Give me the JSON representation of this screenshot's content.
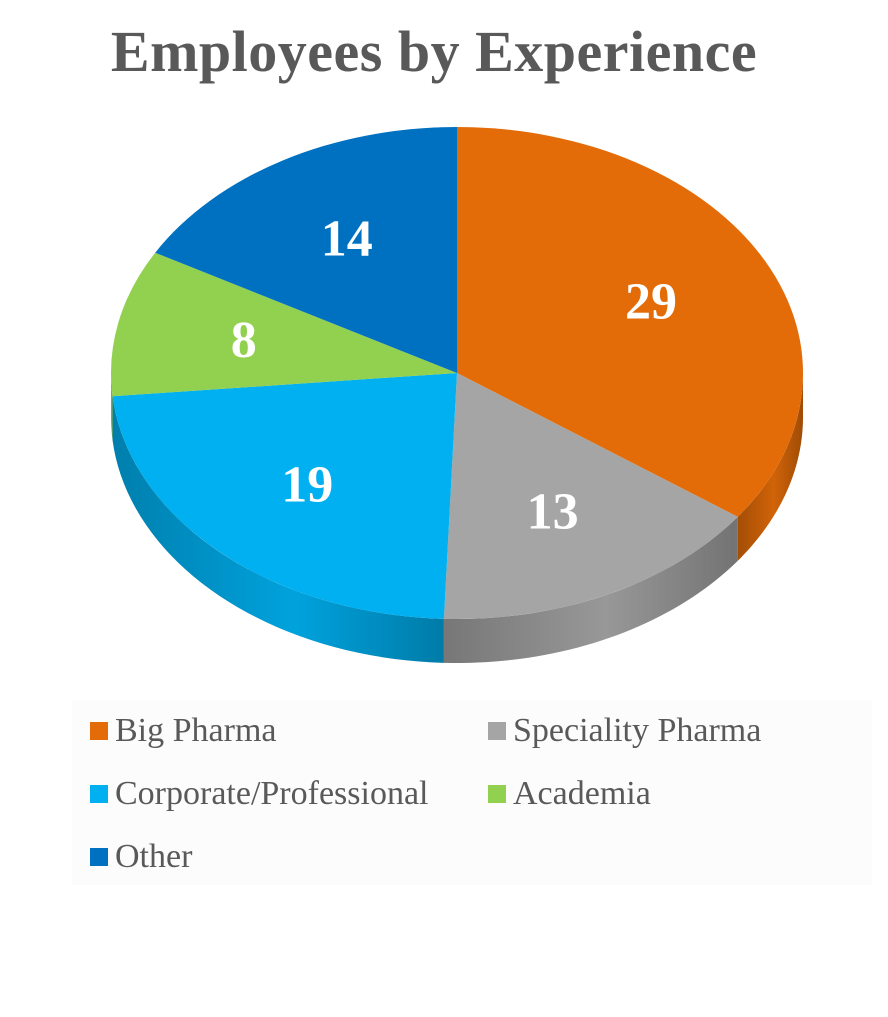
{
  "chart_data": {
    "type": "pie",
    "title": "Employees by Experience",
    "categories": [
      "Big Pharma",
      "Speciality Pharma",
      "Corporate/Professional",
      "Academia",
      "Other"
    ],
    "values": [
      29,
      13,
      19,
      8,
      14
    ],
    "data_labels": [
      "29",
      "13",
      "19",
      "8",
      "14"
    ],
    "colors": [
      "#E36C09",
      "#A5A5A5",
      "#00B0F0",
      "#92D050",
      "#0070C0"
    ],
    "style": "3d",
    "legend_position": "bottom"
  }
}
